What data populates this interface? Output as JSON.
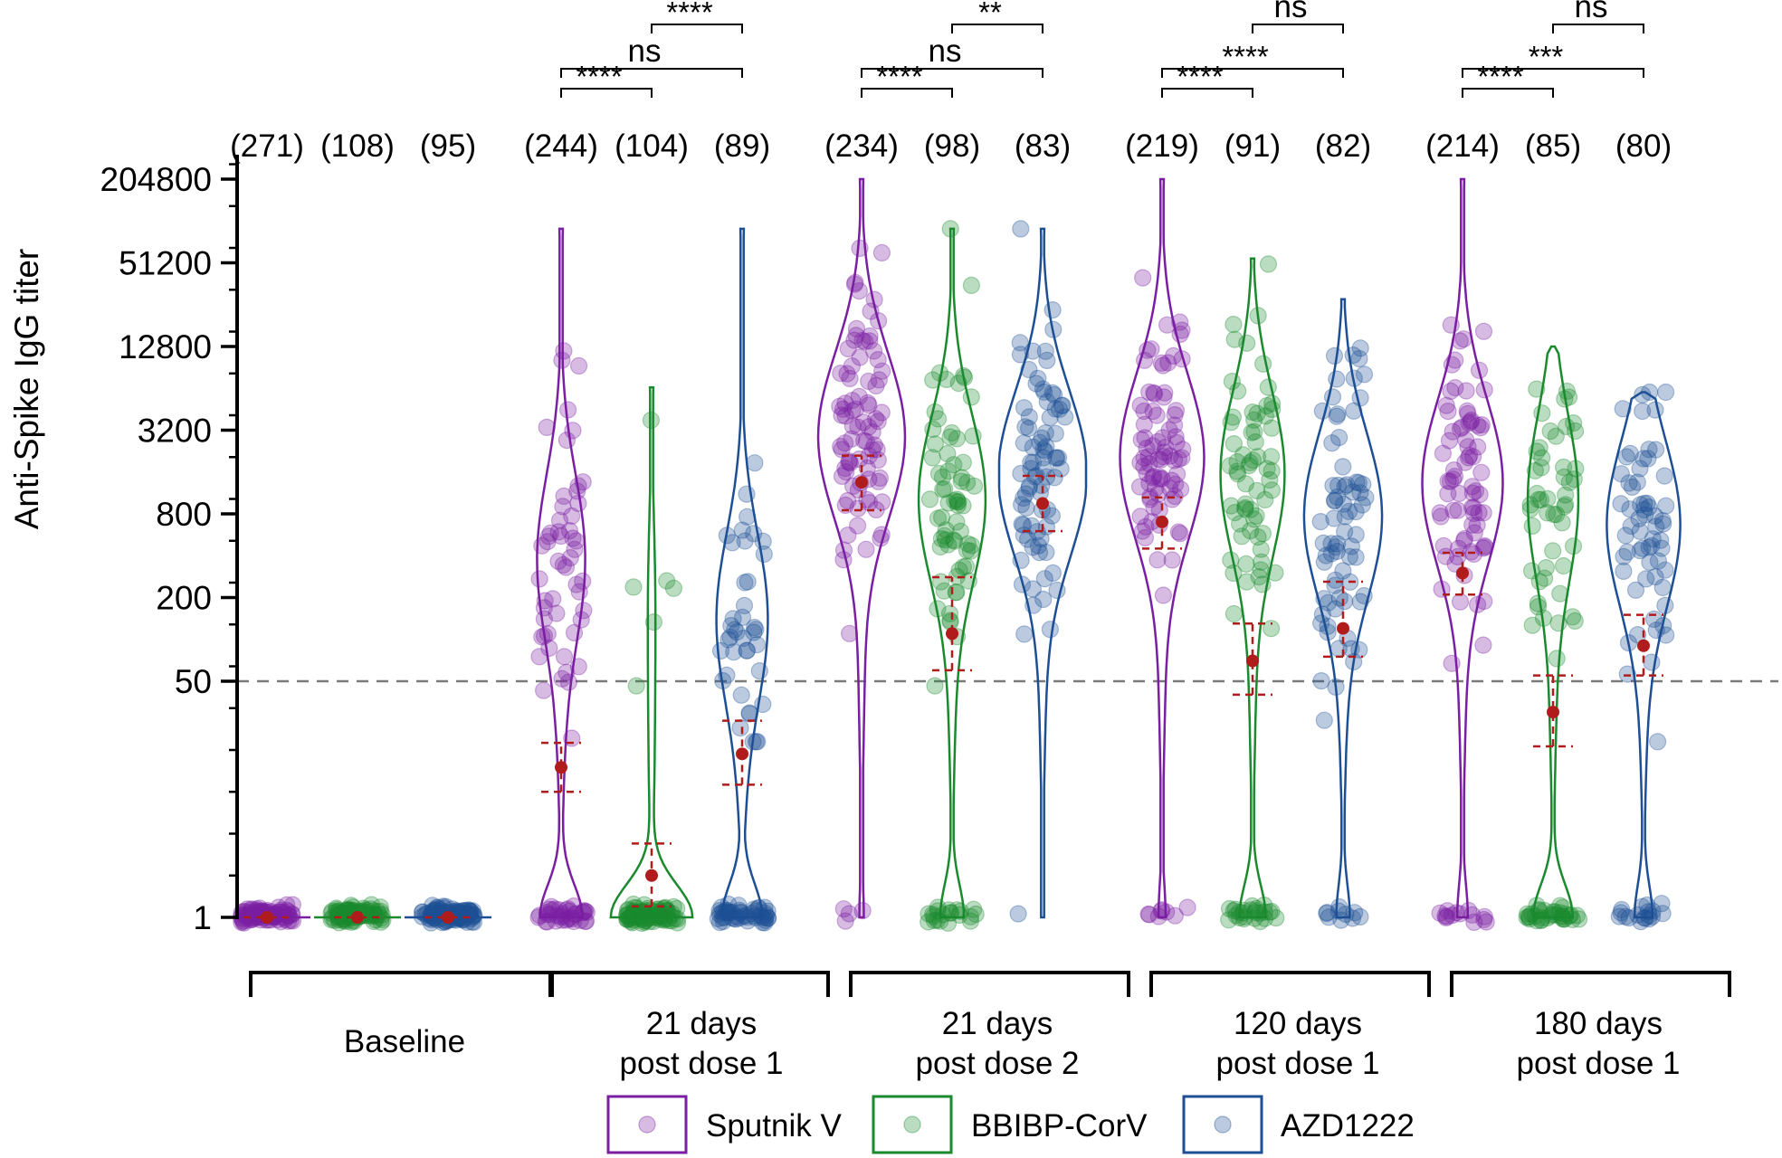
{
  "chart_data": {
    "type": "violin",
    "ylabel": "Anti-Spike IgG titer",
    "yscale": "log2",
    "ylim": [
      0.7,
      307200
    ],
    "yticks": [
      1,
      50,
      200,
      800,
      3200,
      12800,
      51200,
      204800
    ],
    "ytick_labels": [
      "1",
      "50",
      "200",
      "800",
      "3200",
      "12800",
      "51200",
      "204800"
    ],
    "threshold": 50,
    "series": [
      {
        "name": "Sputnik V",
        "color": "#7B1FA2"
      },
      {
        "name": "BBIBP-CorV",
        "color": "#1B8A2E"
      },
      {
        "name": "AZD1222",
        "color": "#1E4F94"
      }
    ],
    "groups": [
      {
        "label_line1": "Baseline",
        "label_line2": "",
        "counts": [
          "(271)",
          "(108)",
          "(95)"
        ],
        "gmt": [
          1,
          1,
          1
        ],
        "ci": [
          [
            1,
            1
          ],
          [
            1,
            1
          ],
          [
            1,
            1
          ]
        ],
        "max": [
          1,
          1,
          1
        ],
        "comparisons": []
      },
      {
        "label_line1": "21 days",
        "label_line2": "post dose 1",
        "counts": [
          "(244)",
          "(104)",
          "(89)"
        ],
        "gmt": [
          12,
          2,
          15
        ],
        "ci": [
          [
            8,
            18
          ],
          [
            1.2,
            3.4
          ],
          [
            9,
            26
          ]
        ],
        "max": [
          90000,
          6500,
          90000
        ],
        "comparisons": [
          {
            "a": 0,
            "b": 1,
            "label": "****"
          },
          {
            "a": 0,
            "b": 2,
            "label": "ns"
          },
          {
            "a": 1,
            "b": 2,
            "label": "****"
          }
        ]
      },
      {
        "label_line1": "21 days",
        "label_line2": "post dose 2",
        "counts": [
          "(234)",
          "(98)",
          "(83)"
        ],
        "gmt": [
          1350,
          110,
          950
        ],
        "ci": [
          [
            850,
            2100
          ],
          [
            60,
            280
          ],
          [
            600,
            1500
          ]
        ],
        "max": [
          204800,
          90000,
          90000
        ],
        "comparisons": [
          {
            "a": 0,
            "b": 1,
            "label": "****"
          },
          {
            "a": 0,
            "b": 2,
            "label": "ns"
          },
          {
            "a": 1,
            "b": 2,
            "label": "**"
          }
        ]
      },
      {
        "label_line1": "120 days",
        "label_line2": "post dose 1",
        "counts": [
          "(219)",
          "(91)",
          "(82)"
        ],
        "gmt": [
          700,
          70,
          120
        ],
        "ci": [
          [
            450,
            1050
          ],
          [
            40,
            130
          ],
          [
            75,
            260
          ]
        ],
        "max": [
          204800,
          55000,
          28000
        ],
        "comparisons": [
          {
            "a": 0,
            "b": 1,
            "label": "****"
          },
          {
            "a": 0,
            "b": 2,
            "label": "****"
          },
          {
            "a": 1,
            "b": 2,
            "label": "ns"
          }
        ]
      },
      {
        "label_line1": "180 days",
        "label_line2": "post dose 1",
        "counts": [
          "(214)",
          "(85)",
          "(80)"
        ],
        "gmt": [
          300,
          30,
          90
        ],
        "ci": [
          [
            210,
            420
          ],
          [
            17,
            55
          ],
          [
            55,
            150
          ]
        ],
        "max": [
          204800,
          12800,
          6000
        ],
        "comparisons": [
          {
            "a": 0,
            "b": 1,
            "label": "****"
          },
          {
            "a": 0,
            "b": 2,
            "label": "***"
          },
          {
            "a": 1,
            "b": 2,
            "label": "ns"
          }
        ]
      }
    ]
  }
}
